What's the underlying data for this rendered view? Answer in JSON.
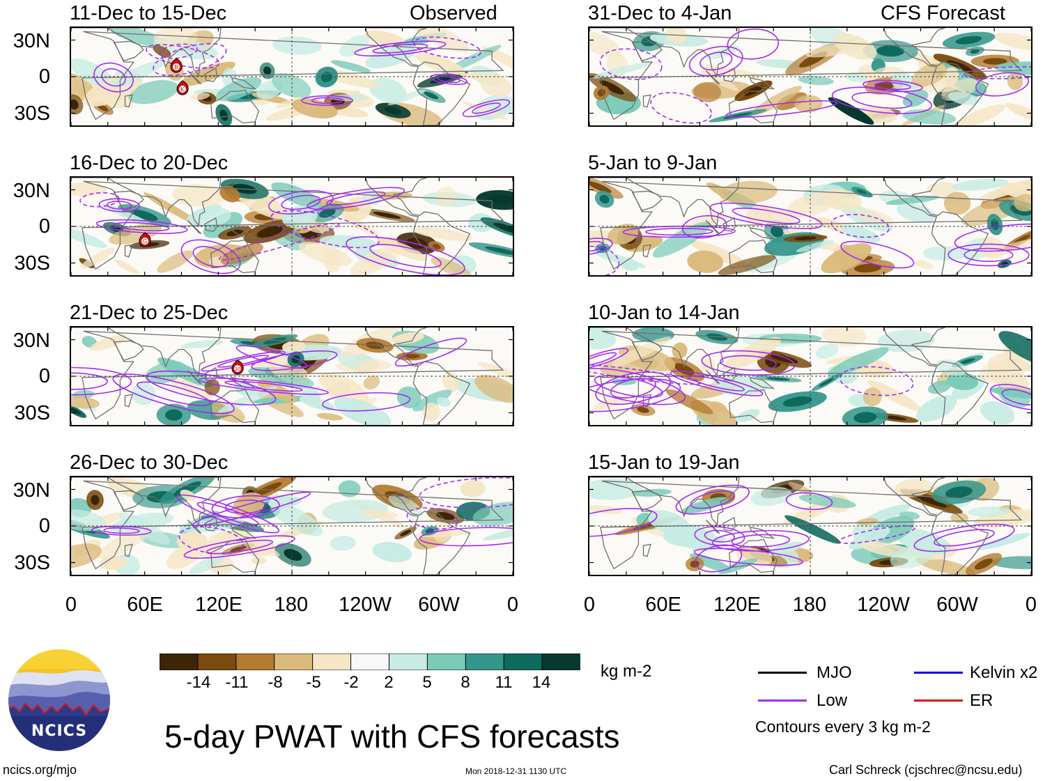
{
  "panels": [
    {
      "date_range": "11-Dec to 15-Dec",
      "tag": "Observed",
      "storms": [
        "B",
        "K"
      ]
    },
    {
      "date_range": "31-Dec to 4-Jan",
      "tag": "CFS Forecast",
      "storms": []
    },
    {
      "date_range": "16-Dec to 20-Dec",
      "tag": "",
      "storms": [
        "G"
      ]
    },
    {
      "date_range": "5-Jan to 9-Jan",
      "tag": "",
      "storms": []
    },
    {
      "date_range": "21-Dec to 25-Dec",
      "tag": "",
      "storms": [
        "30"
      ]
    },
    {
      "date_range": "10-Jan to 14-Jan",
      "tag": "",
      "storms": []
    },
    {
      "date_range": "26-Dec to 30-Dec",
      "tag": "",
      "storms": []
    },
    {
      "date_range": "15-Jan to 19-Jan",
      "tag": "",
      "storms": []
    }
  ],
  "lat_labels": [
    "30N",
    "0",
    "30S"
  ],
  "lon_labels": [
    "0",
    "60E",
    "120E",
    "180",
    "120W",
    "60W",
    "0"
  ],
  "colorbar": {
    "ticks": [
      "-14",
      "-11",
      "-8",
      "-5",
      "-2",
      "2",
      "5",
      "8",
      "11",
      "14"
    ],
    "colors": [
      "#3d2504",
      "#7a4a0e",
      "#b47a30",
      "#dbbb7c",
      "#f5e6c6",
      "#f8f8f8",
      "#c8ece4",
      "#7ccbba",
      "#35968b",
      "#0f6a5e",
      "#06392f"
    ],
    "units": "kg m-2"
  },
  "legend": {
    "items": [
      {
        "label": "MJO",
        "color": "#000000"
      },
      {
        "label": "Kelvin x2",
        "color": "#0000ee"
      },
      {
        "label": "Low",
        "color": "#a52af0"
      },
      {
        "label": "ER",
        "color": "#ee0000"
      }
    ],
    "contour_note": "Contours every 3 kg m-2"
  },
  "logo": {
    "text": "NCICS"
  },
  "title": "5-day PWAT with CFS forecasts",
  "footer": {
    "url": "ncics.org/mjo",
    "timestamp": "Mon 2018-12-31 1130 UTC",
    "credit": "Carl Schreck (cjschrec@ncsu.edu)"
  }
}
